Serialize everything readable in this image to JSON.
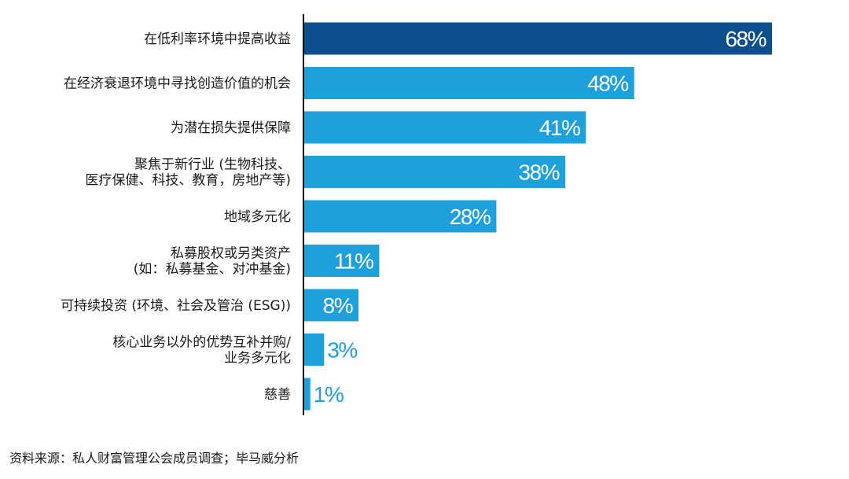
{
  "chart_data": {
    "type": "bar",
    "orientation": "horizontal",
    "title": "",
    "xlabel": "",
    "ylabel": "",
    "xlim": [
      0,
      100
    ],
    "grid": false,
    "categories": [
      [
        "在低利率环境中提高收益"
      ],
      [
        "在经济衰退环境中寻找创造价值的机会"
      ],
      [
        "为潜在损失提供保障"
      ],
      [
        "聚焦于新行业 (生物科技、",
        "医疗保健、科技、教育，房地产等)"
      ],
      [
        "地域多元化"
      ],
      [
        "私募股权或另类资产",
        "(如：私募基金、对冲基金)"
      ],
      [
        "可持续投资 (环境、社会及管治 (ESG))"
      ],
      [
        "核心业务以外的优势互补并购/",
        "业务多元化"
      ],
      [
        "慈善"
      ]
    ],
    "values": [
      68,
      48,
      41,
      38,
      28,
      11,
      8,
      3,
      1
    ],
    "value_labels": [
      "68%",
      "48%",
      "41%",
      "38%",
      "28%",
      "11%",
      "8%",
      "3%",
      "1%"
    ],
    "colors": {
      "highlight": "#0c4f8c",
      "bar": "#1ea0dc",
      "axis": "#111111",
      "label_inside": "#ffffff",
      "label_outside": "#1ea0dc"
    }
  },
  "footer": {
    "source": "资料来源：私人财富管理公会成员调查；毕马威分析"
  }
}
